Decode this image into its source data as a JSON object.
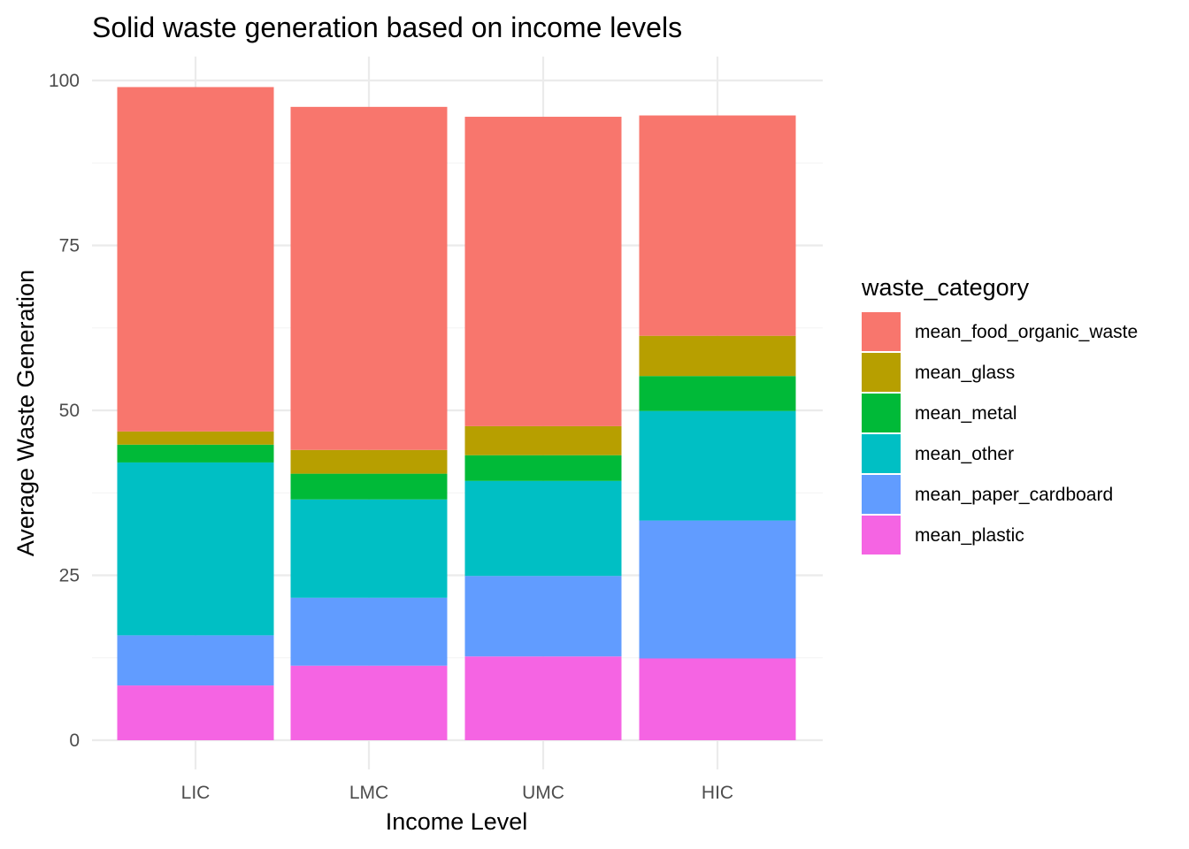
{
  "chart_data": {
    "type": "bar",
    "stacked": true,
    "title": "Solid waste generation based on income levels",
    "xlabel": "Income Level",
    "ylabel": "Average Waste Generation",
    "categories": [
      "LIC",
      "LMC",
      "UMC",
      "HIC"
    ],
    "ylim": [
      0,
      100
    ],
    "yticks": [
      0,
      25,
      50,
      75,
      100
    ],
    "grid": true,
    "legend_position": "right",
    "legend_title": "waste_category",
    "series": [
      {
        "name": "mean_food_organic_waste",
        "color": "#F8766D",
        "values": [
          52.2,
          52.0,
          46.9,
          33.4
        ]
      },
      {
        "name": "mean_glass",
        "color": "#B79F00",
        "values": [
          2.0,
          3.6,
          4.4,
          6.1
        ]
      },
      {
        "name": "mean_metal",
        "color": "#00BA38",
        "values": [
          2.7,
          3.9,
          3.9,
          5.3
        ]
      },
      {
        "name": "mean_other",
        "color": "#00BFC4",
        "values": [
          26.2,
          14.9,
          14.4,
          16.6
        ]
      },
      {
        "name": "mean_paper_cardboard",
        "color": "#619CFF",
        "values": [
          7.6,
          10.3,
          12.2,
          20.9
        ]
      },
      {
        "name": "mean_plastic",
        "color": "#F564E3",
        "values": [
          8.3,
          11.3,
          12.7,
          12.4
        ]
      }
    ]
  }
}
